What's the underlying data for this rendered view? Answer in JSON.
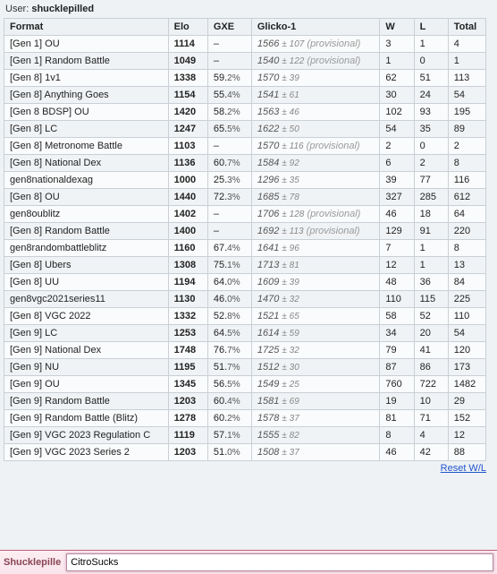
{
  "header": {
    "user_label": "User:",
    "username": "shucklepilled"
  },
  "columns": {
    "format": "Format",
    "elo": "Elo",
    "gxe": "GXE",
    "glicko": "Glicko-1",
    "w": "W",
    "l": "L",
    "total": "Total"
  },
  "provisional_label": "(provisional)",
  "rows": [
    {
      "format": "[Gen 1] OU",
      "elo": "1114",
      "gxe": "–",
      "glicko": "1566",
      "dev": "107",
      "prov": true,
      "w": "3",
      "l": "1",
      "total": "4"
    },
    {
      "format": "[Gen 1] Random Battle",
      "elo": "1049",
      "gxe": "–",
      "glicko": "1540",
      "dev": "122",
      "prov": true,
      "w": "1",
      "l": "0",
      "total": "1"
    },
    {
      "format": "[Gen 8] 1v1",
      "elo": "1338",
      "gxe": "59.2%",
      "glicko": "1570",
      "dev": "39",
      "prov": false,
      "w": "62",
      "l": "51",
      "total": "113"
    },
    {
      "format": "[Gen 8] Anything Goes",
      "elo": "1154",
      "gxe": "55.4%",
      "glicko": "1541",
      "dev": "61",
      "prov": false,
      "w": "30",
      "l": "24",
      "total": "54"
    },
    {
      "format": "[Gen 8 BDSP] OU",
      "elo": "1420",
      "gxe": "58.2%",
      "glicko": "1563",
      "dev": "46",
      "prov": false,
      "w": "102",
      "l": "93",
      "total": "195"
    },
    {
      "format": "[Gen 8] LC",
      "elo": "1247",
      "gxe": "65.5%",
      "glicko": "1622",
      "dev": "50",
      "prov": false,
      "w": "54",
      "l": "35",
      "total": "89"
    },
    {
      "format": "[Gen 8] Metronome Battle",
      "elo": "1103",
      "gxe": "–",
      "glicko": "1570",
      "dev": "116",
      "prov": true,
      "w": "2",
      "l": "0",
      "total": "2"
    },
    {
      "format": "[Gen 8] National Dex",
      "elo": "1136",
      "gxe": "60.7%",
      "glicko": "1584",
      "dev": "92",
      "prov": false,
      "w": "6",
      "l": "2",
      "total": "8"
    },
    {
      "format": "gen8nationaldexag",
      "elo": "1000",
      "gxe": "25.3%",
      "glicko": "1296",
      "dev": "35",
      "prov": false,
      "w": "39",
      "l": "77",
      "total": "116"
    },
    {
      "format": "[Gen 8] OU",
      "elo": "1440",
      "gxe": "72.3%",
      "glicko": "1685",
      "dev": "78",
      "prov": false,
      "w": "327",
      "l": "285",
      "total": "612"
    },
    {
      "format": "gen8oublitz",
      "elo": "1402",
      "gxe": "–",
      "glicko": "1706",
      "dev": "128",
      "prov": true,
      "w": "46",
      "l": "18",
      "total": "64"
    },
    {
      "format": "[Gen 8] Random Battle",
      "elo": "1400",
      "gxe": "–",
      "glicko": "1692",
      "dev": "113",
      "prov": true,
      "w": "129",
      "l": "91",
      "total": "220"
    },
    {
      "format": "gen8randombattleblitz",
      "elo": "1160",
      "gxe": "67.4%",
      "glicko": "1641",
      "dev": "96",
      "prov": false,
      "w": "7",
      "l": "1",
      "total": "8"
    },
    {
      "format": "[Gen 8] Ubers",
      "elo": "1308",
      "gxe": "75.1%",
      "glicko": "1713",
      "dev": "81",
      "prov": false,
      "w": "12",
      "l": "1",
      "total": "13"
    },
    {
      "format": "[Gen 8] UU",
      "elo": "1194",
      "gxe": "64.0%",
      "glicko": "1609",
      "dev": "39",
      "prov": false,
      "w": "48",
      "l": "36",
      "total": "84"
    },
    {
      "format": "gen8vgc2021series11",
      "elo": "1130",
      "gxe": "46.0%",
      "glicko": "1470",
      "dev": "32",
      "prov": false,
      "w": "110",
      "l": "115",
      "total": "225"
    },
    {
      "format": "[Gen 8] VGC 2022",
      "elo": "1332",
      "gxe": "52.8%",
      "glicko": "1521",
      "dev": "65",
      "prov": false,
      "w": "58",
      "l": "52",
      "total": "110"
    },
    {
      "format": "[Gen 9] LC",
      "elo": "1253",
      "gxe": "64.5%",
      "glicko": "1614",
      "dev": "59",
      "prov": false,
      "w": "34",
      "l": "20",
      "total": "54"
    },
    {
      "format": "[Gen 9] National Dex",
      "elo": "1748",
      "gxe": "76.7%",
      "glicko": "1725",
      "dev": "32",
      "prov": false,
      "w": "79",
      "l": "41",
      "total": "120"
    },
    {
      "format": "[Gen 9] NU",
      "elo": "1195",
      "gxe": "51.7%",
      "glicko": "1512",
      "dev": "30",
      "prov": false,
      "w": "87",
      "l": "86",
      "total": "173"
    },
    {
      "format": "[Gen 9] OU",
      "elo": "1345",
      "gxe": "56.5%",
      "glicko": "1549",
      "dev": "25",
      "prov": false,
      "w": "760",
      "l": "722",
      "total": "1482"
    },
    {
      "format": "[Gen 9] Random Battle",
      "elo": "1203",
      "gxe": "60.4%",
      "glicko": "1581",
      "dev": "69",
      "prov": false,
      "w": "19",
      "l": "10",
      "total": "29"
    },
    {
      "format": "[Gen 9] Random Battle (Blitz)",
      "elo": "1278",
      "gxe": "60.2%",
      "glicko": "1578",
      "dev": "37",
      "prov": false,
      "w": "81",
      "l": "71",
      "total": "152"
    },
    {
      "format": "[Gen 9] VGC 2023 Regulation C",
      "elo": "1119",
      "gxe": "57.1%",
      "glicko": "1555",
      "dev": "82",
      "prov": false,
      "w": "8",
      "l": "4",
      "total": "12"
    },
    {
      "format": "[Gen 9] VGC 2023 Series 2",
      "elo": "1203",
      "gxe": "51.0%",
      "glicko": "1508",
      "dev": "37",
      "prov": false,
      "w": "46",
      "l": "42",
      "total": "88"
    }
  ],
  "reset_link": "Reset W/L",
  "bottombar": {
    "nick": "Shucklepille",
    "input_value": "CitroSucks"
  }
}
